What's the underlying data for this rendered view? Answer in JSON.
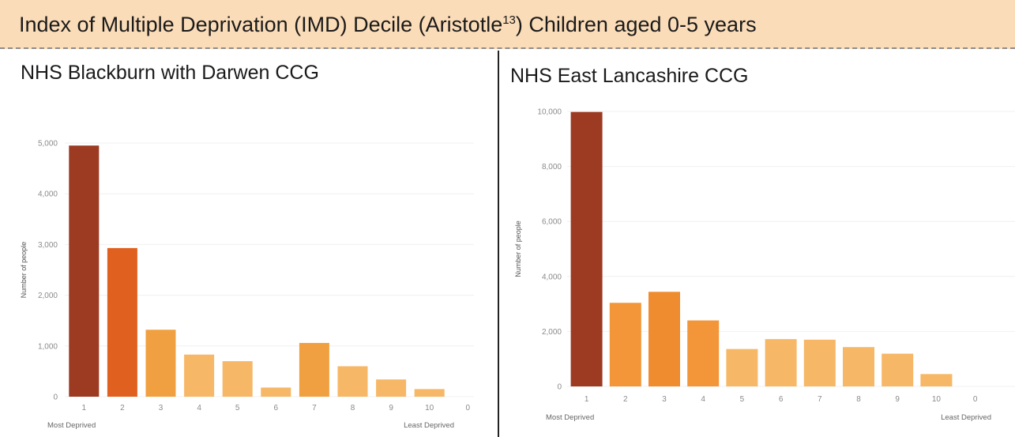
{
  "header": {
    "title_main": "Index of Multiple Deprivation (IMD) Decile (Aristotle",
    "title_sup": "13",
    "title_rest": ") Children aged 0-5 years",
    "background": "#fbdcb8"
  },
  "chart_data": [
    {
      "type": "bar",
      "title": "NHS Blackburn with Darwen CCG",
      "ylabel": "Number of people",
      "ylim": [
        0,
        5000
      ],
      "yticks": [
        0,
        1000,
        2000,
        3000,
        4000,
        5000
      ],
      "ytick_labels": [
        "0",
        "1,000",
        "2,000",
        "3,000",
        "4,000",
        "5,000"
      ],
      "categories": [
        "1",
        "2",
        "3",
        "4",
        "5",
        "6",
        "7",
        "8",
        "9",
        "10",
        "0"
      ],
      "values": [
        4950,
        2930,
        1320,
        830,
        700,
        180,
        1060,
        600,
        340,
        150,
        0
      ],
      "colors": [
        "#9c3a22",
        "#e0611f",
        "#f0a040",
        "#f6b766",
        "#f6b766",
        "#f6b766",
        "#f0a040",
        "#f6b766",
        "#f6b766",
        "#f6b766",
        "#f6b766"
      ],
      "left_note": "Most Deprived",
      "right_note": "Least Deprived",
      "grid": true
    },
    {
      "type": "bar",
      "title": "NHS East Lancashire CCG",
      "ylabel": "Number of people",
      "ylim": [
        0,
        10000
      ],
      "yticks": [
        0,
        2000,
        4000,
        6000,
        8000,
        10000
      ],
      "ytick_labels": [
        "0",
        "2,000",
        "4,000",
        "6,000",
        "8,000",
        "10,000"
      ],
      "categories": [
        "1",
        "2",
        "3",
        "4",
        "5",
        "6",
        "7",
        "8",
        "9",
        "10",
        "0"
      ],
      "values": [
        9980,
        3040,
        3440,
        2400,
        1360,
        1720,
        1700,
        1430,
        1190,
        450,
        0
      ],
      "colors": [
        "#9c3a22",
        "#f3963a",
        "#f08c30",
        "#f3963a",
        "#f6b766",
        "#f6b766",
        "#f6b766",
        "#f6b766",
        "#f6b766",
        "#f6b766",
        "#f6b766"
      ],
      "left_note": "Most Deprived",
      "right_note": "Least Deprived",
      "grid": true
    }
  ]
}
